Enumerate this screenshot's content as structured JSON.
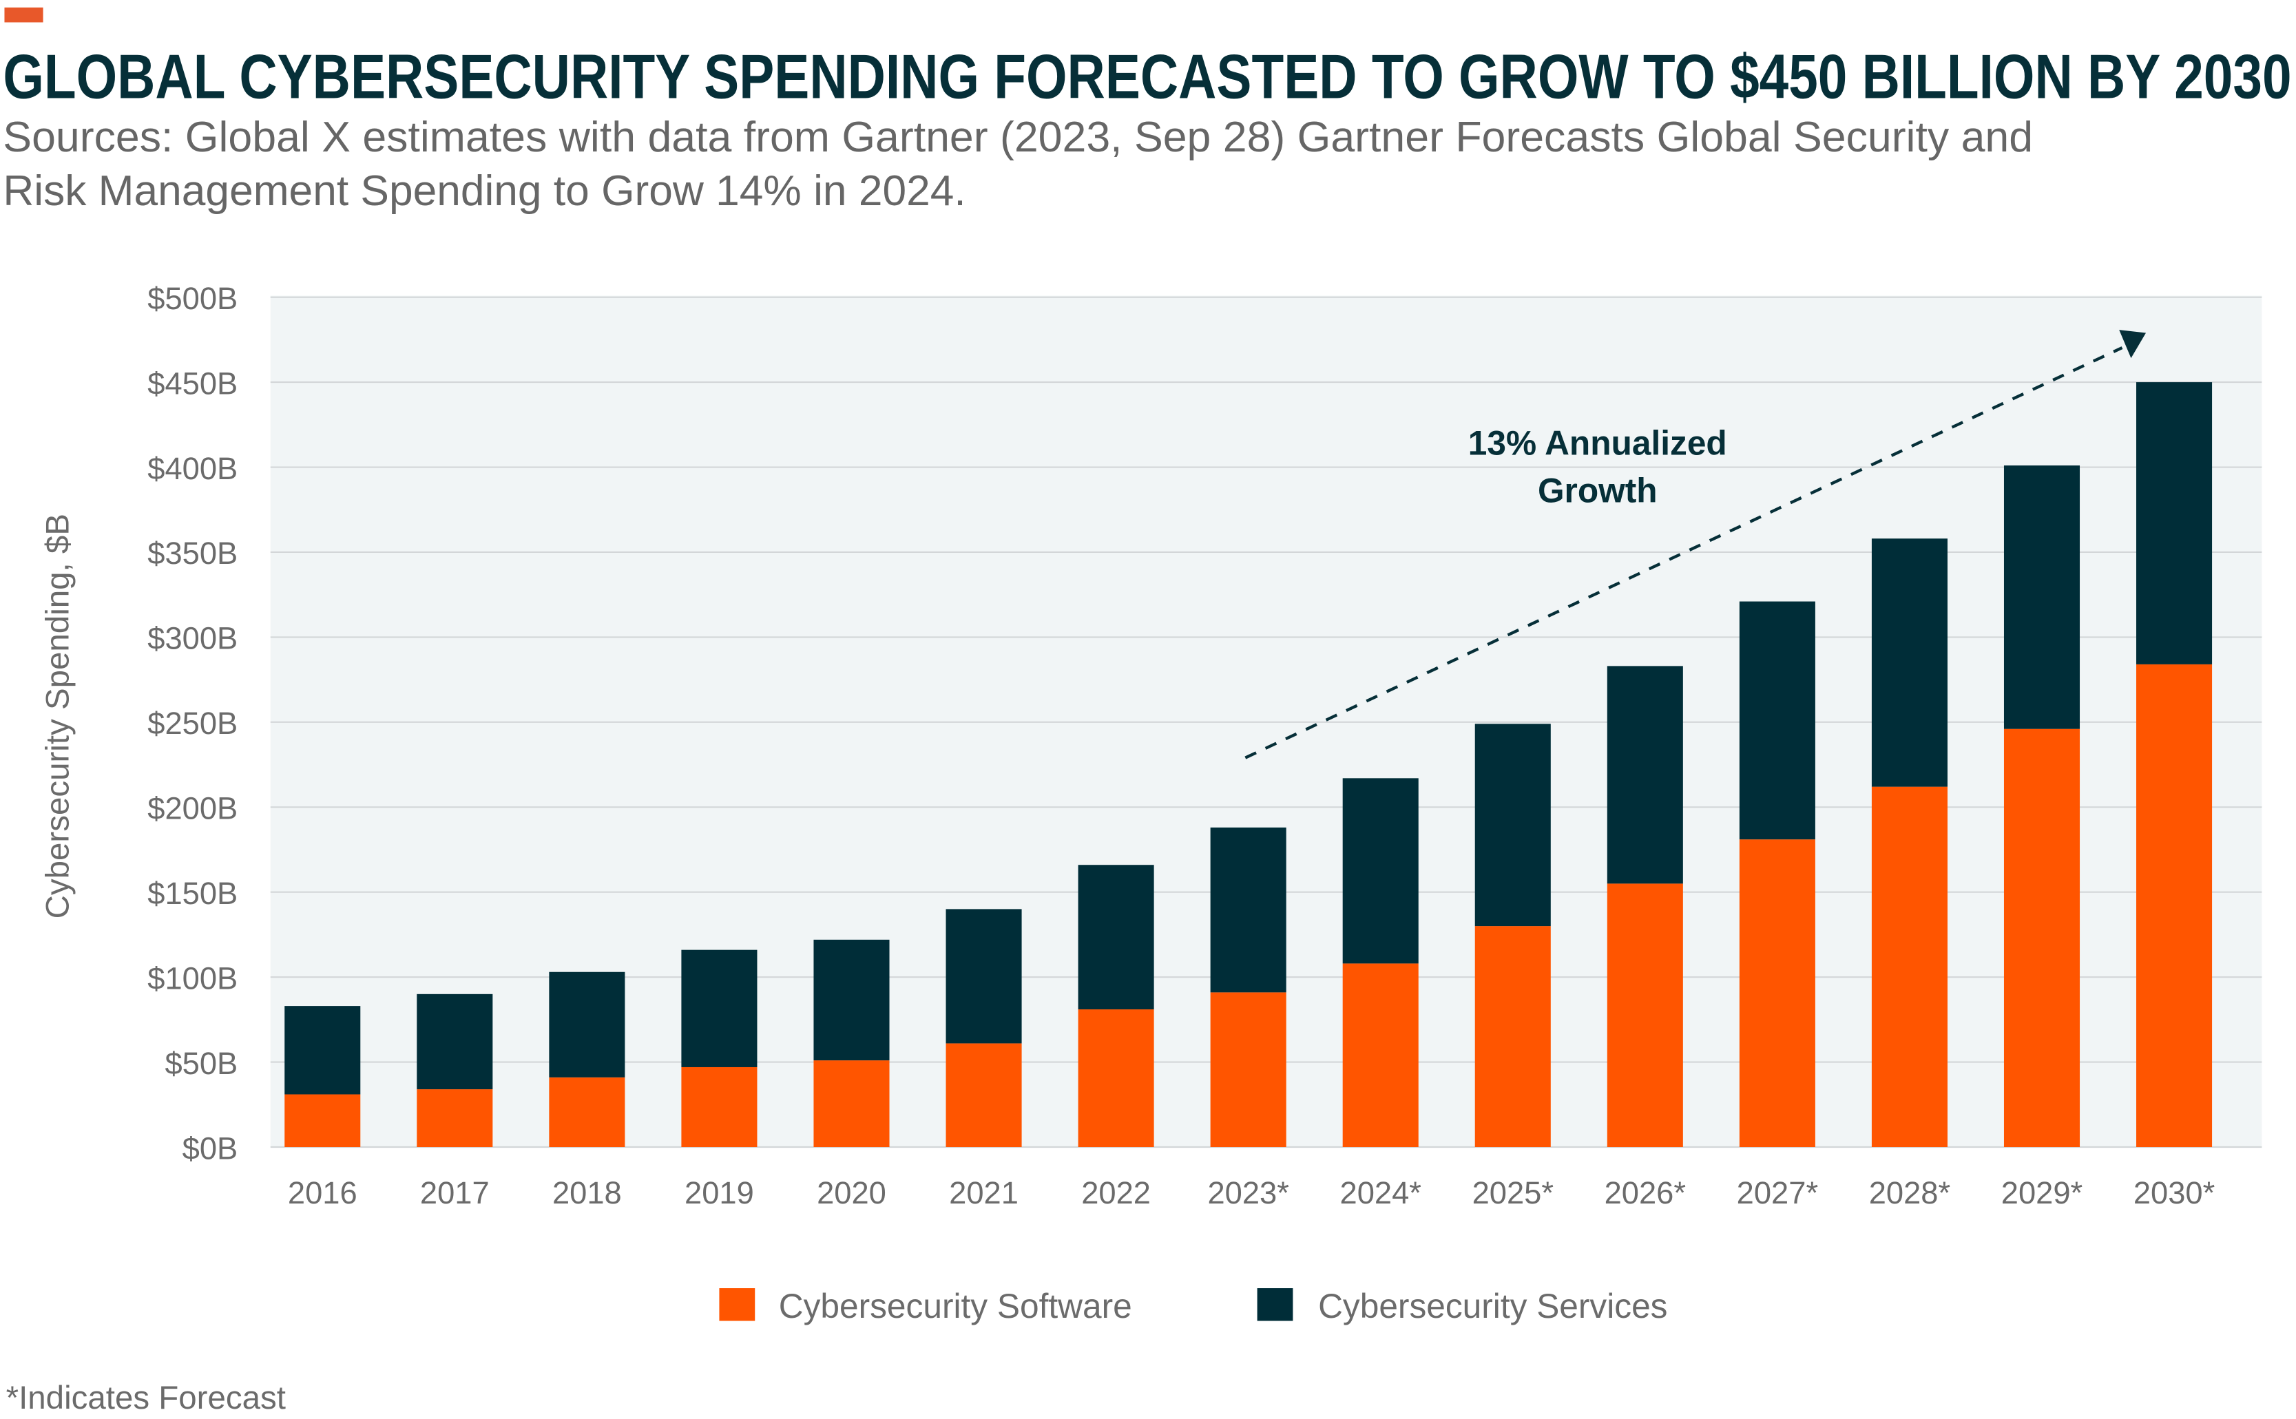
{
  "title": "GLOBAL CYBERSECURITY SPENDING FORECASTED TO GROW TO $450 BILLION BY 2030",
  "subtitle_lines": [
    "Sources: Global X estimates with data from Gartner (2023, Sep 28) Gartner Forecasts Global Security and",
    "Risk Management Spending to Grow 14% in 2024."
  ],
  "footnote": "*Indicates Forecast",
  "colors": {
    "software": "#FF5500",
    "services": "#002D38",
    "plot_bg": "#F1F5F6",
    "accent": "#E8582A",
    "title": "#062F38"
  },
  "chart_data": {
    "type": "bar",
    "stacked": true,
    "title": "GLOBAL CYBERSECURITY SPENDING FORECASTED TO GROW TO $450 BILLION BY 2030",
    "ylabel": "Cybersecurity Spending, $B",
    "xlabel": "",
    "ylim": [
      0,
      500
    ],
    "yticks": [
      "$0B",
      "$50B",
      "$100B",
      "$150B",
      "$200B",
      "$250B",
      "$300B",
      "$350B",
      "$400B",
      "$450B",
      "$500B"
    ],
    "grid": true,
    "legend_placement": "bottom",
    "categories": [
      "2016",
      "2017",
      "2018",
      "2019",
      "2020",
      "2021",
      "2022",
      "2023*",
      "2024*",
      "2025*",
      "2026*",
      "2027*",
      "2028*",
      "2029*",
      "2030*"
    ],
    "series": [
      {
        "name": "Cybersecurity Software",
        "color": "#FF5500",
        "values": [
          31,
          34,
          41,
          47,
          51,
          61,
          81,
          91,
          108,
          130,
          155,
          181,
          212,
          246,
          284
        ]
      },
      {
        "name": "Cybersecurity Services",
        "color": "#002D38",
        "values": [
          52,
          56,
          62,
          69,
          71,
          79,
          85,
          97,
          109,
          119,
          128,
          140,
          146,
          155,
          166
        ]
      }
    ],
    "totals": [
      83,
      90,
      103,
      116,
      122,
      140,
      166,
      188,
      217,
      249,
      283,
      321,
      358,
      401,
      450
    ],
    "annotation": {
      "lines": [
        "13% Annualized",
        "Growth"
      ],
      "type": "dashed-arrow"
    }
  }
}
